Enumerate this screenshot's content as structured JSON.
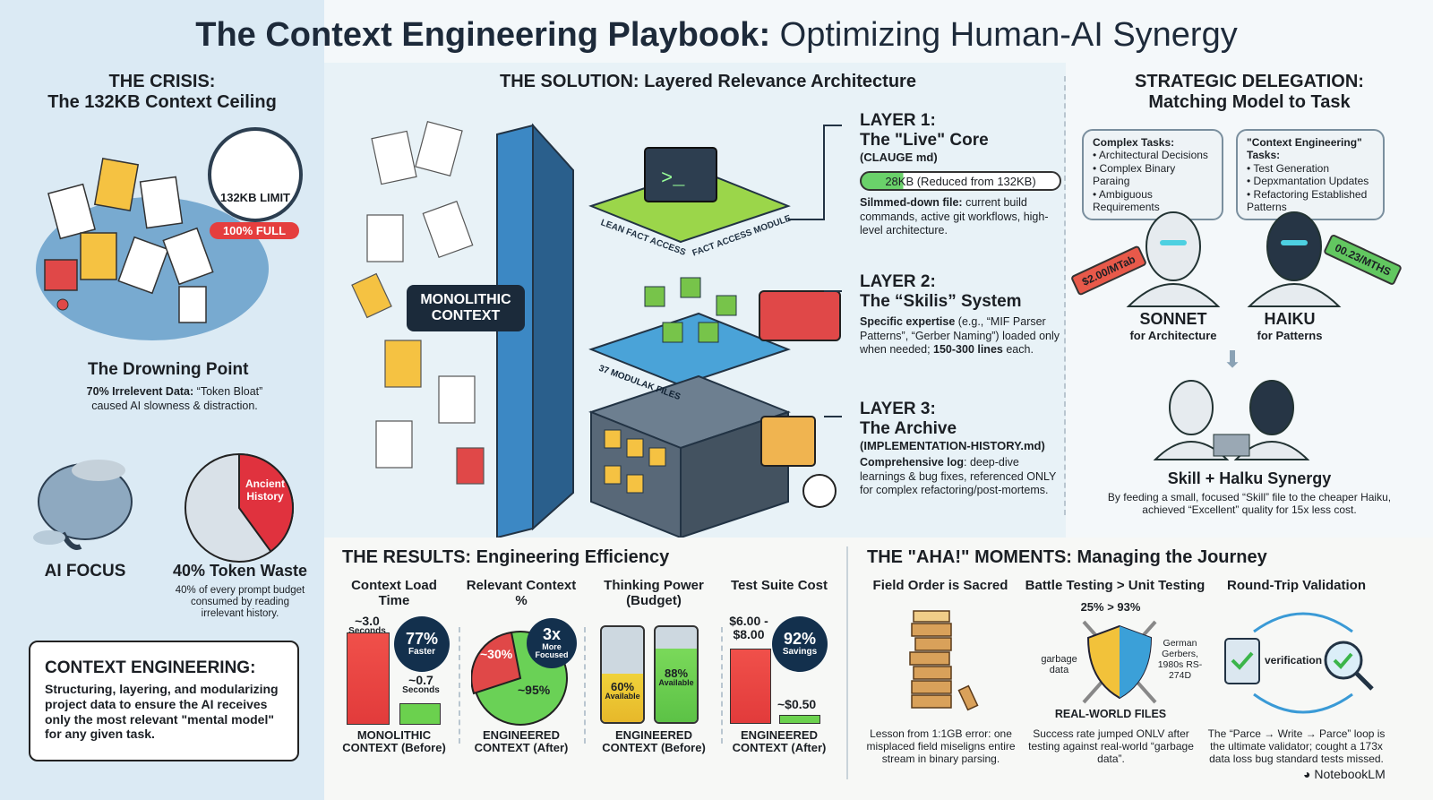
{
  "title": {
    "bold": "The Context Engineering Playbook:",
    "light": " Optimizing Human-AI Synergy"
  },
  "crisis": {
    "heading": "THE CRISIS:",
    "subheading": "The 132KB Context Ceiling",
    "gauge_label": "132KB LIMIT",
    "gauge_status": "100% FULL",
    "gauge_fill_percent": 100,
    "drowning_title": "The Drowning Point",
    "drowning_bold": "70% Irrelevent Data:",
    "drowning_text": " “Token Bloat” caused AI slowness & distraction.",
    "ai_focus": "AI FOCUS",
    "pie_label": "Ancient History",
    "pie_value_percent": 40,
    "waste_title": "40% Token Waste",
    "waste_text": "40% of every prompt budget consumed by reading irrelevant history.",
    "ce_title": "CONTEXT ENGINEERING:",
    "ce_text": "Structuring, layering, and modularizing project data to ensure the AI receives only the most relevant \"mental model\" for any given task."
  },
  "solution": {
    "heading": "THE SOLUTION: Layered Relevance Architecture",
    "monolithic": "MONOLITHIC CONTEXT",
    "lean_label": "LEAN FACT ACCESS",
    "module_label": "FACT ACCESS MODULE",
    "files_label": "37 MODULAK FILES",
    "terminal": ">_",
    "layers": [
      {
        "title": "LAYER 1:",
        "name": "The \"Live\" Core",
        "file": "(CLAUGE md)",
        "pill": "28KB (Reduced from 132KB)",
        "pill_fill_percent": 21,
        "bold": "Silmmed-down file:",
        "text": " current build commands, active git workflows, high-level architecture."
      },
      {
        "title": "LAYER 2:",
        "name": "The “Skilis” System",
        "file": "",
        "bold": "Specific expertise",
        "text": " (e.g., “MIF Parser Patterns”, “Gerber Naming”) loaded only when needed; ",
        "bold2": "150-300 lines",
        "text2": " each."
      },
      {
        "title": "LAYER 3:",
        "name": "The Archive",
        "file": "(IMPLEMENTATION-HISTORY.md)",
        "bold": "Comprehensive log",
        "text": ": deep-dive learnings & bug fixes, referenced ONLY for complex refactoring/post-mortems."
      }
    ]
  },
  "delegation": {
    "heading1": "STRATEGIC DELEGATION:",
    "heading2": "Matching Model to Task",
    "complex_title": "Complex Tasks:",
    "complex_items": [
      "• Architectural Decisions",
      "• Complex Binary Paraing",
      "• Ambiguous Requirements"
    ],
    "ce_title": "\"Context Engineering\" Tasks:",
    "ce_items": [
      "• Test Generation",
      "• Depxmantation Updates",
      "• Refactoring Established Patterns"
    ],
    "sonnet_price": "$2.00/MTab",
    "haiku_price": "00.23/MTHS",
    "sonnet": "SONNET",
    "sonnet_sub": "for Architecture",
    "haiku": "HAIKU",
    "haiku_sub": "for Patterns",
    "synergy_title": "Skill + Halku Synergy",
    "synergy_text": "By feeding a small, focused “Skill” file to the cheaper Haiku, achieved “Excellent” quality for 15x less cost.",
    "colors": {
      "sonnet": "#e8594a",
      "haiku": "#62c760"
    }
  },
  "results": {
    "heading": "THE RESULTS: Engineering Efficiency",
    "load": {
      "title": "Context Load Time",
      "before": "~3.0",
      "before_unit": "Seconds",
      "after": "~0.7",
      "after_unit": "Seconds",
      "badge_big": "77%",
      "badge_small": "Faster",
      "footer": "MONOLITHIC CONTEXT (Before)",
      "before_value": 3.0,
      "after_value": 0.7
    },
    "relevant": {
      "title": "Relevant Context %",
      "before": "~30%",
      "after": "~95%",
      "badge_big": "3x",
      "badge_small": "More Focused",
      "footer": "ENGINEERED CONTEXT (After)"
    },
    "thinking": {
      "title": "Thinking Power (Budget)",
      "before": "60%",
      "after": "88%",
      "label": "Available",
      "footer": "ENGINEERED CONTEXT (Before)",
      "before_value": 60,
      "after_value": 88
    },
    "cost": {
      "title": "Test Suite Cost",
      "before": "$6.00 - $8.00",
      "after": "~$0.50",
      "badge_big": "92%",
      "badge_small": "Savings",
      "footer": "ENGINEERED CONTEXT (After)"
    }
  },
  "aha": {
    "heading": "THE \"AHA!\" MOMENTS: Managing the Journey",
    "items": [
      {
        "title": "Field Order is Sacred",
        "text": "Lesson from 1:1GB error: one misplaced field miseligns entire stream in binary parsing."
      },
      {
        "title": "Battle Testing > Unit Testing",
        "stat": "25% > 93%",
        "left": "garbage data",
        "right": "German Gerbers, 1980s RS-274D",
        "caption": "REAL-WORLD FILES",
        "text": "Success rate jumped ONLV after testing against real-world “garbage data”."
      },
      {
        "title": "Round-Trip Validation",
        "loop": "verification",
        "text": "The “Parce → Write → Parce” loop is the ultimate validator; cought a 173x data loss bug standard tests missed."
      }
    ]
  },
  "footer": {
    "brand": "NotebookLM"
  }
}
